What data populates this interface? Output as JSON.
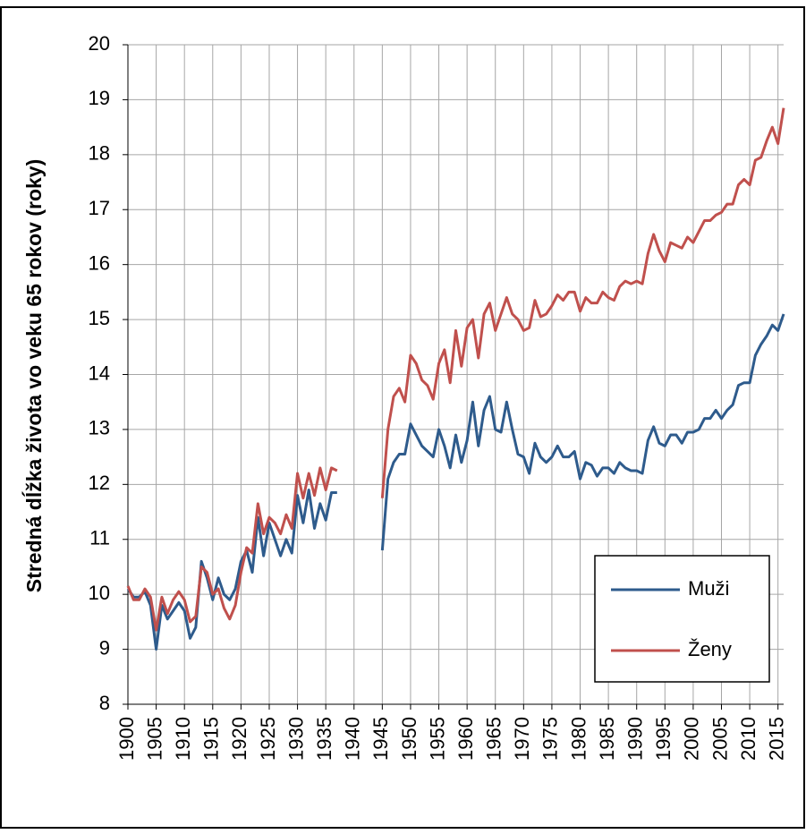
{
  "chart_data": {
    "type": "line",
    "ylabel": "Stredná dĺžka života vo veku 65  rokov (roky)",
    "x": [
      1900,
      1901,
      1902,
      1903,
      1904,
      1905,
      1906,
      1907,
      1908,
      1909,
      1910,
      1911,
      1912,
      1913,
      1914,
      1915,
      1916,
      1917,
      1918,
      1919,
      1920,
      1921,
      1922,
      1923,
      1924,
      1925,
      1926,
      1927,
      1928,
      1929,
      1930,
      1931,
      1932,
      1933,
      1934,
      1935,
      1936,
      1937,
      1938,
      1939,
      1940,
      1941,
      1942,
      1943,
      1944,
      1945,
      1946,
      1947,
      1948,
      1949,
      1950,
      1951,
      1952,
      1953,
      1954,
      1955,
      1956,
      1957,
      1958,
      1959,
      1960,
      1961,
      1962,
      1963,
      1964,
      1965,
      1966,
      1967,
      1968,
      1969,
      1970,
      1971,
      1972,
      1973,
      1974,
      1975,
      1976,
      1977,
      1978,
      1979,
      1980,
      1981,
      1982,
      1983,
      1984,
      1985,
      1986,
      1987,
      1988,
      1989,
      1990,
      1991,
      1992,
      1993,
      1994,
      1995,
      1996,
      1997,
      1998,
      1999,
      2000,
      2001,
      2002,
      2003,
      2004,
      2005,
      2006,
      2007,
      2008,
      2009,
      2010,
      2011,
      2012,
      2013,
      2014,
      2015,
      2016
    ],
    "series": [
      {
        "name": "Muži",
        "color": "#2e5b8c",
        "values": [
          10.1,
          9.95,
          9.95,
          10.05,
          9.8,
          9.0,
          9.8,
          9.55,
          9.7,
          9.85,
          9.7,
          9.2,
          9.4,
          10.6,
          10.3,
          9.9,
          10.3,
          10.0,
          9.9,
          10.1,
          10.6,
          10.8,
          10.4,
          11.4,
          10.7,
          11.3,
          11.0,
          10.7,
          11.0,
          10.75,
          11.8,
          11.3,
          11.9,
          11.2,
          11.65,
          11.35,
          11.85,
          11.85,
          null,
          null,
          null,
          null,
          null,
          null,
          null,
          10.8,
          12.1,
          12.4,
          12.55,
          12.55,
          13.1,
          12.9,
          12.7,
          12.6,
          12.5,
          13.0,
          12.7,
          12.3,
          12.9,
          12.4,
          12.8,
          13.5,
          12.7,
          13.35,
          13.6,
          13.0,
          12.95,
          13.5,
          13.0,
          12.55,
          12.5,
          12.2,
          12.75,
          12.5,
          12.4,
          12.5,
          12.7,
          12.5,
          12.5,
          12.6,
          12.1,
          12.4,
          12.35,
          12.15,
          12.3,
          12.3,
          12.2,
          12.4,
          12.3,
          12.25,
          12.25,
          12.2,
          12.8,
          13.05,
          12.75,
          12.7,
          12.9,
          12.9,
          12.75,
          12.95,
          12.95,
          13.0,
          13.2,
          13.2,
          13.35,
          13.2,
          13.35,
          13.45,
          13.8,
          13.85,
          13.85,
          14.35,
          14.55,
          14.7,
          14.9,
          14.8,
          15.1
        ]
      },
      {
        "name": "Ženy",
        "color": "#c0504d",
        "values": [
          10.15,
          9.9,
          9.9,
          10.1,
          9.95,
          9.35,
          9.95,
          9.65,
          9.9,
          10.05,
          9.9,
          9.5,
          9.6,
          10.5,
          10.4,
          10.0,
          10.1,
          9.75,
          9.55,
          9.8,
          10.4,
          10.85,
          10.75,
          11.65,
          11.1,
          11.4,
          11.3,
          11.1,
          11.45,
          11.2,
          12.2,
          11.75,
          12.2,
          11.8,
          12.3,
          11.9,
          12.3,
          12.25,
          null,
          null,
          null,
          null,
          null,
          null,
          null,
          11.75,
          13.0,
          13.6,
          13.75,
          13.5,
          14.35,
          14.2,
          13.9,
          13.8,
          13.55,
          14.2,
          14.45,
          13.85,
          14.8,
          14.15,
          14.85,
          15.0,
          14.3,
          15.1,
          15.3,
          14.8,
          15.1,
          15.4,
          15.1,
          15.0,
          14.8,
          14.85,
          15.35,
          15.05,
          15.1,
          15.25,
          15.45,
          15.35,
          15.5,
          15.5,
          15.15,
          15.4,
          15.3,
          15.3,
          15.5,
          15.4,
          15.35,
          15.6,
          15.7,
          15.65,
          15.7,
          15.65,
          16.2,
          16.55,
          16.25,
          16.05,
          16.4,
          16.35,
          16.3,
          16.5,
          16.4,
          16.6,
          16.8,
          16.8,
          16.9,
          16.95,
          17.1,
          17.1,
          17.45,
          17.55,
          17.45,
          17.9,
          17.95,
          18.25,
          18.5,
          18.2,
          18.85
        ]
      }
    ],
    "xlim": [
      1900,
      2016
    ],
    "xticks": [
      1900,
      1905,
      1910,
      1915,
      1920,
      1925,
      1930,
      1935,
      1940,
      1945,
      1950,
      1955,
      1960,
      1965,
      1970,
      1975,
      1980,
      1985,
      1990,
      1995,
      2000,
      2005,
      2010,
      2015
    ],
    "ylim": [
      8,
      20
    ],
    "yticks": [
      8,
      9,
      10,
      11,
      12,
      13,
      14,
      15,
      16,
      17,
      18,
      19,
      20
    ],
    "grid": true,
    "legend": "lower right"
  }
}
